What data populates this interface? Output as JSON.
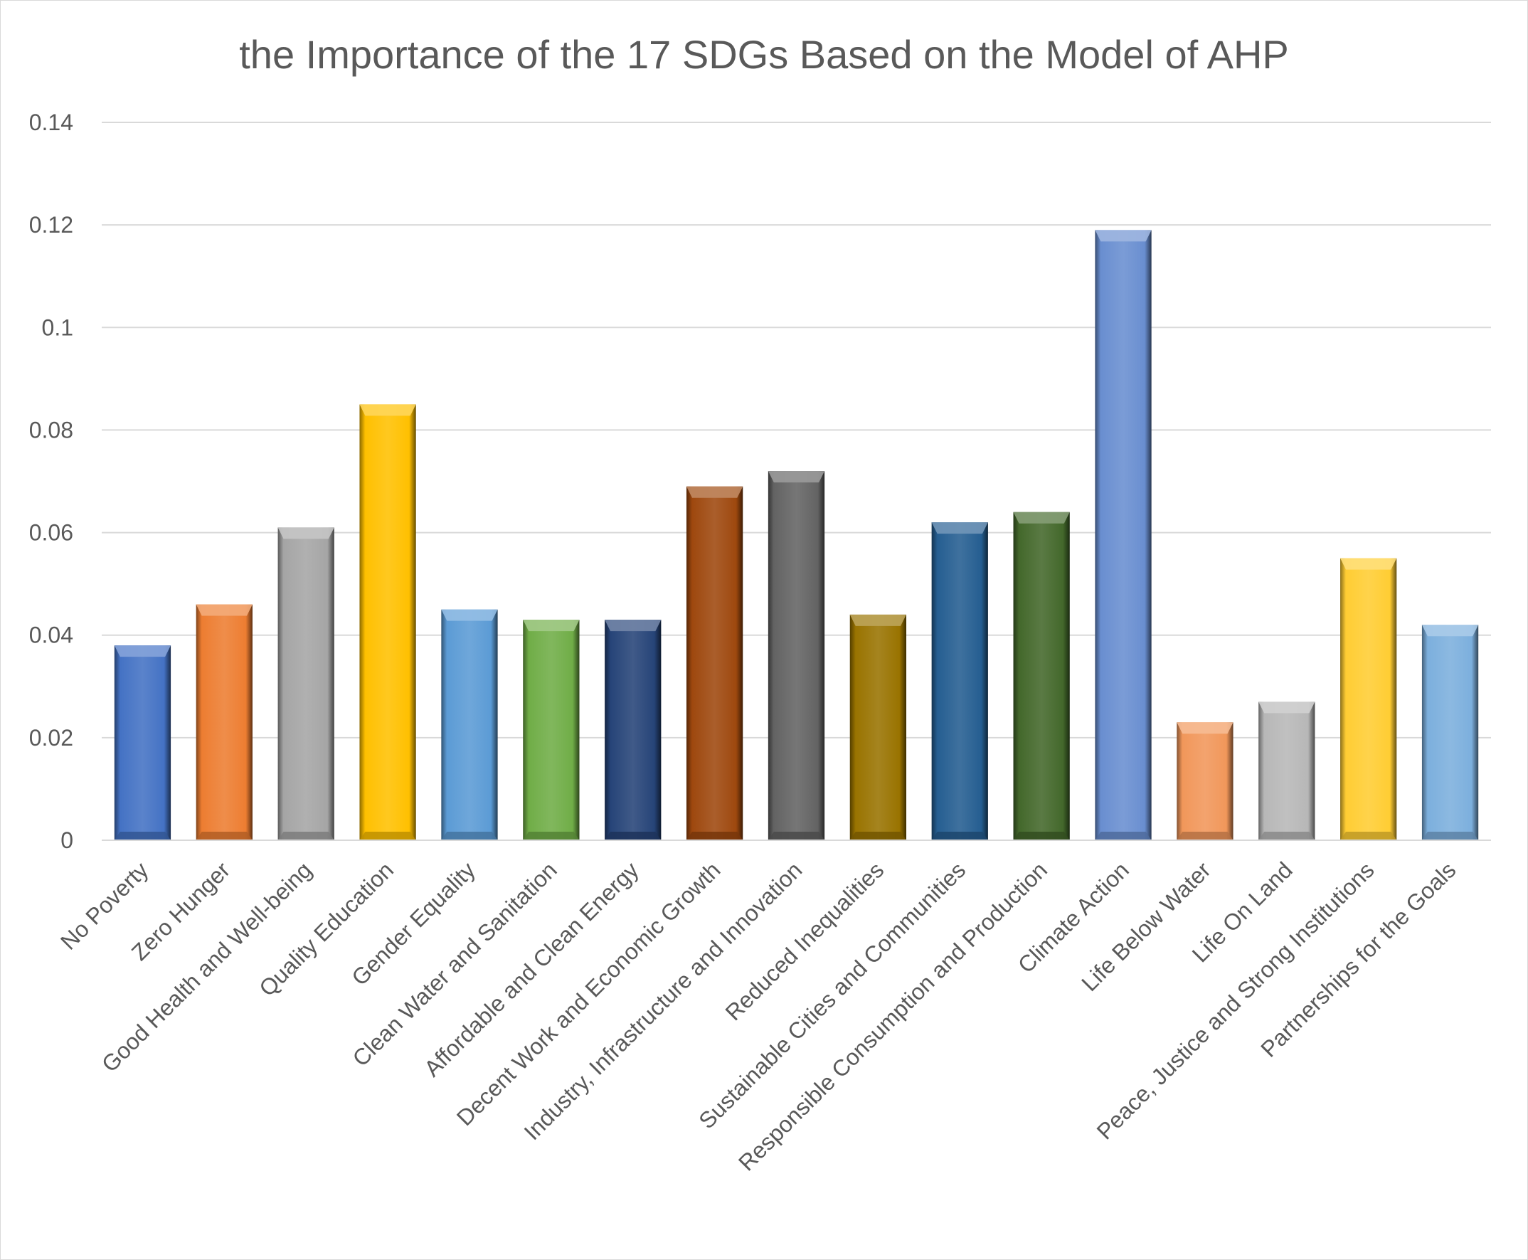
{
  "chart_data": {
    "type": "bar",
    "title": "the Importance of the 17 SDGs Based on the Model of AHP",
    "xlabel": "",
    "ylabel": "",
    "ylim": [
      0,
      0.14
    ],
    "yticks": [
      "0",
      "0.02",
      "0.04",
      "0.06",
      "0.08",
      "0.1",
      "0.12",
      "0.14"
    ],
    "grid": true,
    "legend": "none",
    "categories": [
      "No Poverty",
      "Zero Hunger",
      "Good Health and Well-being",
      "Quality Education",
      "Gender Equality",
      "Clean Water and Sanitation",
      "Affordable and Clean Energy",
      "Decent Work and Economic Growth",
      "Industry, Infrastructure and Innovation",
      "Reduced Inequalities",
      "Sustainable Cities and Communities",
      "Responsible Consumption and Production",
      "Climate Action",
      "Life Below Water",
      "Life On Land",
      "Peace, Justice and Strong Institutions",
      "Partnerships for the Goals"
    ],
    "values": [
      0.038,
      0.046,
      0.061,
      0.085,
      0.045,
      0.043,
      0.043,
      0.069,
      0.072,
      0.044,
      0.062,
      0.064,
      0.119,
      0.023,
      0.027,
      0.055,
      0.042
    ],
    "colors": [
      "#4472C4",
      "#ED7D31",
      "#A5A5A5",
      "#FFC000",
      "#5B9BD5",
      "#70AD47",
      "#264478",
      "#9E480E",
      "#636363",
      "#997300",
      "#255E91",
      "#43682B",
      "#698ED0",
      "#F1975A",
      "#B7B7B7",
      "#FFCD33",
      "#7CAFDD"
    ]
  }
}
